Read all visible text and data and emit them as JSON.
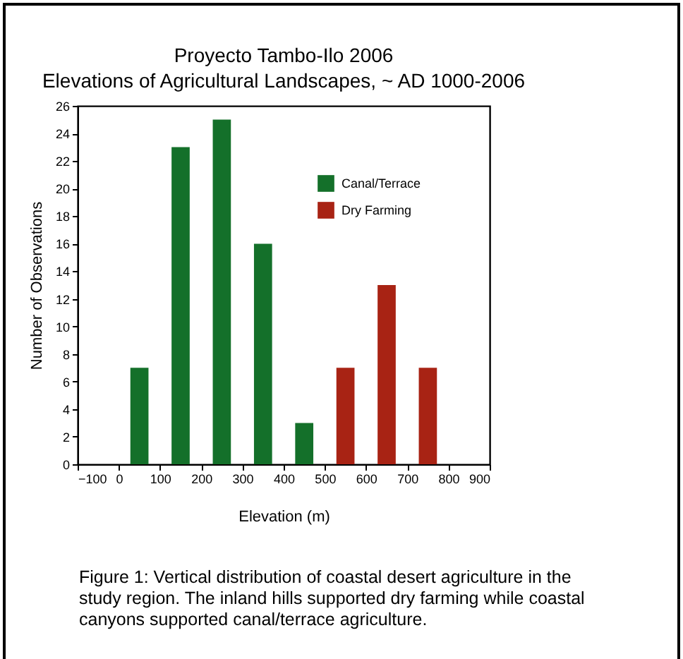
{
  "chart_data": {
    "type": "histogram",
    "title": "Proyecto Tambo-Ilo 2006",
    "subtitle": "Elevations of Agricultural Landscapes, ~ AD 1000-2006",
    "xlabel": "Elevation (m)",
    "ylabel": "Number of Observations",
    "bins": [
      -100,
      0,
      100,
      200,
      300,
      400,
      500,
      600,
      700,
      800,
      900
    ],
    "series": [
      {
        "name": "Canal/Terrace",
        "color": "#14702a",
        "values": [
          0,
          7,
          23,
          25,
          16,
          3,
          0,
          0,
          0,
          0
        ]
      },
      {
        "name": "Dry Farming",
        "color": "#a82314",
        "values": [
          0,
          0,
          0,
          0,
          0,
          0,
          7,
          13,
          7,
          0
        ]
      }
    ],
    "xlim": [
      -100,
      900
    ],
    "xticks": [
      -100,
      0,
      100,
      200,
      300,
      400,
      500,
      600,
      700,
      800,
      900
    ],
    "ylim": [
      0,
      26
    ],
    "yticks": [
      0,
      2,
      4,
      6,
      8,
      10,
      12,
      14,
      16,
      18,
      20,
      22,
      24,
      26
    ],
    "legend": "top right",
    "grid": false,
    "annotations": [
      "Figure 1: Vertical distribution of coastal desert agriculture in the study region. The inland hills supported dry farming while coastal canyons supported canal/terrace agriculture."
    ]
  }
}
